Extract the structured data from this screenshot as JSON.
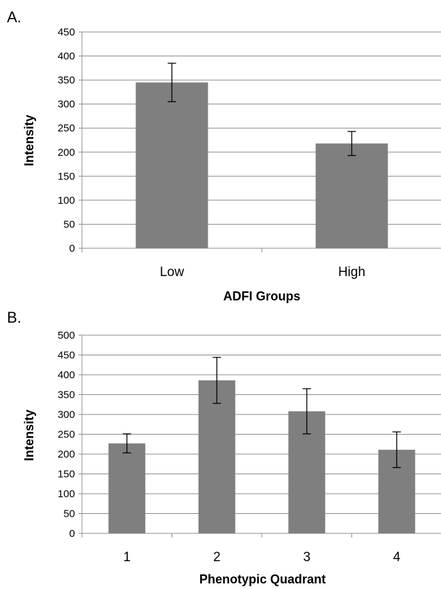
{
  "chart_data": [
    {
      "type": "bar",
      "panel_label": "A.",
      "categories": [
        "Low",
        "High"
      ],
      "values": [
        345,
        218
      ],
      "error": [
        40,
        25
      ],
      "xlabel": "ADFI Groups",
      "ylabel": "Intensity",
      "ylim": [
        0,
        450
      ],
      "yticks": [
        "0",
        "50",
        "100",
        "150",
        "200",
        "250",
        "300",
        "350",
        "400",
        "450"
      ],
      "grid": true,
      "bar_color": "#7f7f7f"
    },
    {
      "type": "bar",
      "panel_label": "B.",
      "categories": [
        "1",
        "2",
        "3",
        "4"
      ],
      "values": [
        227,
        386,
        308,
        211
      ],
      "error": [
        24,
        58,
        57,
        45
      ],
      "xlabel": "Phenotypic Quadrant",
      "ylabel": "Intensity",
      "ylim": [
        0,
        500
      ],
      "yticks": [
        "0",
        "50",
        "100",
        "150",
        "200",
        "250",
        "300",
        "350",
        "400",
        "450",
        "500"
      ],
      "grid": true,
      "bar_color": "#7f7f7f"
    }
  ]
}
